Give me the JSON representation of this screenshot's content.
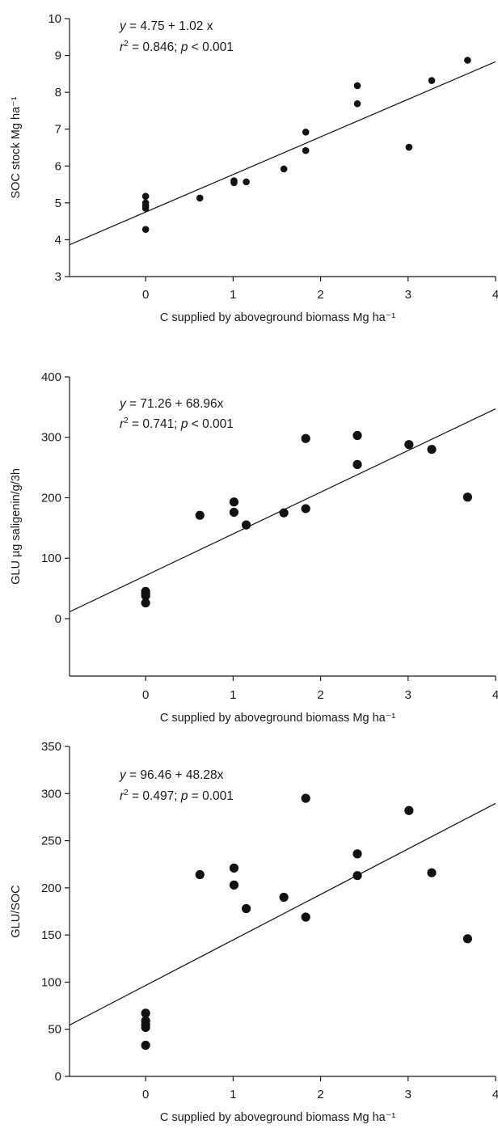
{
  "chart_data": [
    {
      "type": "scatter",
      "xlabel": "C supplied by aboveground biomass Mg ha⁻¹",
      "ylabel": "SOC stock Mg ha⁻¹",
      "xlim": [
        -0.87,
        4
      ],
      "ylim": [
        3,
        10
      ],
      "xticks": [
        0,
        1,
        2,
        3,
        4
      ],
      "yticks": [
        3,
        4,
        5,
        6,
        7,
        8,
        9,
        10
      ],
      "equation": {
        "yvar": "y",
        "rhs": " = 4.75 + 1.02 x"
      },
      "stats": {
        "r_sym": "r",
        "r_rhs": " = 0.846; ",
        "p_sym": "p",
        "p_rhs": " < 0.001"
      },
      "fit": {
        "intercept": 4.75,
        "slope": 1.02
      },
      "marker_size": "small",
      "x": [
        0,
        0,
        0,
        0,
        0,
        0.62,
        1.01,
        1.01,
        1.15,
        1.58,
        1.83,
        1.83,
        2.42,
        2.42,
        3.01,
        3.27,
        3.68
      ],
      "y": [
        5.18,
        5.0,
        4.92,
        4.85,
        4.28,
        5.13,
        5.6,
        5.55,
        5.57,
        5.92,
        6.92,
        6.42,
        8.18,
        7.69,
        6.51,
        8.32,
        8.87
      ]
    },
    {
      "type": "scatter",
      "xlabel": "C supplied by aboveground biomass Mg ha⁻¹",
      "ylabel": "GLU µg saligenin/g/3h",
      "xlim": [
        -0.87,
        4
      ],
      "ylim": [
        -95,
        400
      ],
      "xticks": [
        0,
        1,
        2,
        3,
        4
      ],
      "yticks": [
        0,
        100,
        200,
        300,
        400
      ],
      "equation": {
        "yvar": "y",
        "rhs": " = 71.26 + 68.96x"
      },
      "stats": {
        "r_sym": "r",
        "r_rhs": " = 0.741; ",
        "p_sym": "p",
        "p_rhs": " < 0.001"
      },
      "fit": {
        "intercept": 71.26,
        "slope": 68.96
      },
      "marker_size": "large",
      "x": [
        0,
        0,
        0,
        0,
        0.62,
        1.01,
        1.01,
        1.15,
        1.58,
        1.83,
        1.83,
        2.42,
        2.42,
        3.01,
        3.27,
        3.68
      ],
      "y": [
        45,
        42,
        38,
        26,
        171,
        193,
        176,
        155,
        175,
        298,
        182,
        303,
        255,
        288,
        280,
        201
      ]
    },
    {
      "type": "scatter",
      "xlabel": "C supplied by aboveground biomass Mg ha⁻¹",
      "ylabel": "GLU/SOC",
      "xlim": [
        -0.87,
        4
      ],
      "ylim": [
        0,
        350
      ],
      "xticks": [
        0,
        1,
        2,
        3,
        4
      ],
      "yticks": [
        0,
        50,
        100,
        150,
        200,
        250,
        300,
        350
      ],
      "equation": {
        "yvar": "y",
        "rhs": " = 96.46 + 48.28x"
      },
      "stats": {
        "r_sym": "r",
        "r_rhs": " = 0.497; ",
        "p_sym": "p",
        "p_rhs": " = 0.001"
      },
      "fit": {
        "intercept": 96.46,
        "slope": 48.28
      },
      "marker_size": "large",
      "x": [
        0,
        0,
        0,
        0,
        0,
        0.62,
        1.01,
        1.01,
        1.15,
        1.58,
        1.83,
        1.83,
        2.42,
        2.42,
        3.01,
        3.27,
        3.68
      ],
      "y": [
        67,
        59,
        55,
        52,
        33,
        214,
        221,
        203,
        178,
        190,
        295,
        169,
        236,
        213,
        282,
        216,
        146
      ]
    }
  ]
}
